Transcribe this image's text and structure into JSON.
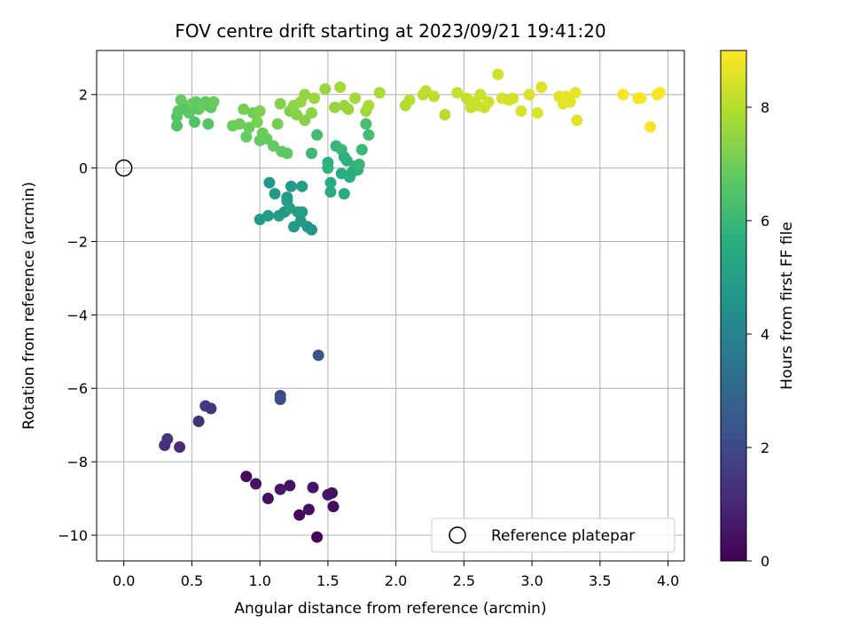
{
  "chart_data": {
    "type": "scatter",
    "title": "FOV centre drift starting at 2023/09/21 19:41:20",
    "xlabel": "Angular distance from reference (arcmin)",
    "ylabel": "Rotation from reference (arcmin)",
    "xlim": [
      -0.2,
      4.12
    ],
    "ylim": [
      -10.7,
      3.2
    ],
    "xticks": [
      0.0,
      0.5,
      1.0,
      1.5,
      2.0,
      2.5,
      3.0,
      3.5,
      4.0
    ],
    "xtick_labels": [
      "0.0",
      "0.5",
      "1.0",
      "1.5",
      "2.0",
      "2.5",
      "3.0",
      "3.5",
      "4.0"
    ],
    "yticks": [
      2,
      0,
      -2,
      -4,
      -6,
      -8,
      -10
    ],
    "ytick_labels": [
      "2",
      "0",
      "−2",
      "−4",
      "−6",
      "−8",
      "−10"
    ],
    "grid": true,
    "colormap": "viridis",
    "colorbar": {
      "label": "Hours from first FF file",
      "range": [
        0,
        9
      ],
      "ticks": [
        0,
        2,
        4,
        6,
        8
      ],
      "tick_labels": [
        "0",
        "2",
        "4",
        "6",
        "8"
      ]
    },
    "reference": {
      "name": "Reference platepar",
      "x": 0.0,
      "y": 0.0
    },
    "legend": {
      "placement": "lower-right",
      "entries": [
        "Reference platepar"
      ]
    },
    "points": [
      {
        "x": 0.9,
        "y": -8.4,
        "h": 0.3
      },
      {
        "x": 0.97,
        "y": -8.6,
        "h": 0.5
      },
      {
        "x": 1.06,
        "y": -9.0,
        "h": 0.35
      },
      {
        "x": 1.15,
        "y": -8.75,
        "h": 0.6
      },
      {
        "x": 1.22,
        "y": -8.65,
        "h": 0.45
      },
      {
        "x": 1.29,
        "y": -9.45,
        "h": 0.2
      },
      {
        "x": 1.36,
        "y": -9.3,
        "h": 0.4
      },
      {
        "x": 1.39,
        "y": -8.7,
        "h": 0.5
      },
      {
        "x": 1.42,
        "y": -10.05,
        "h": 0.1
      },
      {
        "x": 1.5,
        "y": -8.9,
        "h": 0.6
      },
      {
        "x": 1.53,
        "y": -8.85,
        "h": 0.4
      },
      {
        "x": 1.54,
        "y": -9.22,
        "h": 0.3
      },
      {
        "x": 0.3,
        "y": -7.55,
        "h": 1.2
      },
      {
        "x": 0.32,
        "y": -7.38,
        "h": 1.4
      },
      {
        "x": 0.41,
        "y": -7.6,
        "h": 1.1
      },
      {
        "x": 0.55,
        "y": -6.9,
        "h": 1.3
      },
      {
        "x": 0.6,
        "y": -6.48,
        "h": 1.5
      },
      {
        "x": 0.64,
        "y": -6.55,
        "h": 1.4
      },
      {
        "x": 1.15,
        "y": -6.2,
        "h": 1.9
      },
      {
        "x": 1.15,
        "y": -6.3,
        "h": 2.1
      },
      {
        "x": 1.43,
        "y": -5.1,
        "h": 2.3
      },
      {
        "x": 1.0,
        "y": -1.4,
        "h": 4.8
      },
      {
        "x": 1.06,
        "y": -1.3,
        "h": 4.9
      },
      {
        "x": 1.07,
        "y": -0.4,
        "h": 4.7
      },
      {
        "x": 1.11,
        "y": -0.7,
        "h": 4.9
      },
      {
        "x": 1.14,
        "y": -1.3,
        "h": 5.0
      },
      {
        "x": 1.18,
        "y": -1.2,
        "h": 4.8
      },
      {
        "x": 1.2,
        "y": -0.9,
        "h": 5.0
      },
      {
        "x": 1.2,
        "y": -0.8,
        "h": 4.9
      },
      {
        "x": 1.22,
        "y": -1.1,
        "h": 5.1
      },
      {
        "x": 1.23,
        "y": -0.5,
        "h": 4.8
      },
      {
        "x": 1.25,
        "y": -1.6,
        "h": 4.9
      },
      {
        "x": 1.28,
        "y": -1.2,
        "h": 5.0
      },
      {
        "x": 1.3,
        "y": -1.45,
        "h": 4.85
      },
      {
        "x": 1.31,
        "y": -0.5,
        "h": 4.95
      },
      {
        "x": 1.31,
        "y": -1.2,
        "h": 5.05
      },
      {
        "x": 1.35,
        "y": -1.6,
        "h": 4.75
      },
      {
        "x": 1.38,
        "y": -1.68,
        "h": 4.7
      },
      {
        "x": 1.38,
        "y": 0.4,
        "h": 6.1
      },
      {
        "x": 1.42,
        "y": 0.9,
        "h": 6.2
      },
      {
        "x": 1.5,
        "y": 0.15,
        "h": 5.7
      },
      {
        "x": 1.5,
        "y": 0.0,
        "h": 5.8
      },
      {
        "x": 1.52,
        "y": -0.4,
        "h": 5.6
      },
      {
        "x": 1.52,
        "y": -0.65,
        "h": 5.5
      },
      {
        "x": 1.56,
        "y": 0.6,
        "h": 5.9
      },
      {
        "x": 1.6,
        "y": 0.5,
        "h": 5.95
      },
      {
        "x": 1.6,
        "y": -0.15,
        "h": 5.6
      },
      {
        "x": 1.62,
        "y": -0.7,
        "h": 5.5
      },
      {
        "x": 1.62,
        "y": 0.3,
        "h": 5.8
      },
      {
        "x": 1.64,
        "y": 0.2,
        "h": 5.7
      },
      {
        "x": 1.66,
        "y": -0.25,
        "h": 5.7
      },
      {
        "x": 1.68,
        "y": -0.1,
        "h": 5.6
      },
      {
        "x": 1.7,
        "y": 0.05,
        "h": 5.8
      },
      {
        "x": 1.72,
        "y": -0.05,
        "h": 5.7
      },
      {
        "x": 1.75,
        "y": 0.5,
        "h": 6.0
      },
      {
        "x": 1.78,
        "y": 1.2,
        "h": 6.3
      },
      {
        "x": 1.8,
        "y": 0.9,
        "h": 6.2
      },
      {
        "x": 1.73,
        "y": 0.1,
        "h": 5.9
      },
      {
        "x": 0.39,
        "y": 1.15,
        "h": 6.5
      },
      {
        "x": 0.39,
        "y": 1.4,
        "h": 6.6
      },
      {
        "x": 0.4,
        "y": 1.55,
        "h": 6.7
      },
      {
        "x": 0.42,
        "y": 1.85,
        "h": 6.8
      },
      {
        "x": 0.45,
        "y": 1.6,
        "h": 6.6
      },
      {
        "x": 0.48,
        "y": 1.5,
        "h": 6.7
      },
      {
        "x": 0.5,
        "y": 1.75,
        "h": 6.9
      },
      {
        "x": 0.52,
        "y": 1.25,
        "h": 6.5
      },
      {
        "x": 0.53,
        "y": 1.8,
        "h": 6.8
      },
      {
        "x": 0.55,
        "y": 1.6,
        "h": 6.7
      },
      {
        "x": 0.58,
        "y": 1.7,
        "h": 6.9
      },
      {
        "x": 0.6,
        "y": 1.8,
        "h": 6.8
      },
      {
        "x": 0.62,
        "y": 1.2,
        "h": 6.6
      },
      {
        "x": 0.64,
        "y": 1.65,
        "h": 6.7
      },
      {
        "x": 0.66,
        "y": 1.8,
        "h": 6.9
      },
      {
        "x": 0.8,
        "y": 1.15,
        "h": 6.9
      },
      {
        "x": 0.85,
        "y": 1.2,
        "h": 7.0
      },
      {
        "x": 0.88,
        "y": 1.6,
        "h": 7.1
      },
      {
        "x": 0.9,
        "y": 0.85,
        "h": 6.8
      },
      {
        "x": 0.92,
        "y": 1.1,
        "h": 6.9
      },
      {
        "x": 0.95,
        "y": 1.5,
        "h": 7.0
      },
      {
        "x": 0.98,
        "y": 1.25,
        "h": 7.1
      },
      {
        "x": 1.0,
        "y": 1.55,
        "h": 7.2
      },
      {
        "x": 1.0,
        "y": 0.75,
        "h": 6.8
      },
      {
        "x": 1.02,
        "y": 0.95,
        "h": 6.9
      },
      {
        "x": 1.05,
        "y": 0.8,
        "h": 6.85
      },
      {
        "x": 1.1,
        "y": 0.6,
        "h": 6.8
      },
      {
        "x": 1.13,
        "y": 1.2,
        "h": 7.1
      },
      {
        "x": 1.15,
        "y": 1.75,
        "h": 7.3
      },
      {
        "x": 1.16,
        "y": 0.45,
        "h": 6.8
      },
      {
        "x": 1.2,
        "y": 0.4,
        "h": 6.7
      },
      {
        "x": 1.22,
        "y": 1.55,
        "h": 7.2
      },
      {
        "x": 1.25,
        "y": 1.7,
        "h": 7.4
      },
      {
        "x": 1.27,
        "y": 1.45,
        "h": 7.3
      },
      {
        "x": 1.3,
        "y": 1.8,
        "h": 7.5
      },
      {
        "x": 1.33,
        "y": 1.3,
        "h": 7.3
      },
      {
        "x": 1.33,
        "y": 2.0,
        "h": 7.5
      },
      {
        "x": 1.38,
        "y": 1.5,
        "h": 7.4
      },
      {
        "x": 1.4,
        "y": 1.9,
        "h": 7.6
      },
      {
        "x": 1.48,
        "y": 2.15,
        "h": 7.6
      },
      {
        "x": 1.55,
        "y": 1.65,
        "h": 7.5
      },
      {
        "x": 1.59,
        "y": 2.2,
        "h": 7.7
      },
      {
        "x": 1.62,
        "y": 1.7,
        "h": 7.6
      },
      {
        "x": 1.65,
        "y": 1.6,
        "h": 7.6
      },
      {
        "x": 1.7,
        "y": 1.9,
        "h": 7.7
      },
      {
        "x": 1.78,
        "y": 1.55,
        "h": 7.7
      },
      {
        "x": 1.8,
        "y": 1.7,
        "h": 7.8
      },
      {
        "x": 1.88,
        "y": 2.05,
        "h": 7.8
      },
      {
        "x": 2.07,
        "y": 1.7,
        "h": 7.9
      },
      {
        "x": 2.1,
        "y": 1.85,
        "h": 8.0
      },
      {
        "x": 2.2,
        "y": 2.0,
        "h": 8.0
      },
      {
        "x": 2.22,
        "y": 2.1,
        "h": 8.1
      },
      {
        "x": 2.28,
        "y": 1.95,
        "h": 8.1
      },
      {
        "x": 2.36,
        "y": 1.45,
        "h": 8.0
      },
      {
        "x": 2.45,
        "y": 2.05,
        "h": 8.2
      },
      {
        "x": 2.52,
        "y": 1.9,
        "h": 8.2
      },
      {
        "x": 2.55,
        "y": 1.65,
        "h": 8.2
      },
      {
        "x": 2.58,
        "y": 1.8,
        "h": 8.25
      },
      {
        "x": 2.6,
        "y": 1.7,
        "h": 8.3
      },
      {
        "x": 2.62,
        "y": 2.0,
        "h": 8.3
      },
      {
        "x": 2.65,
        "y": 1.65,
        "h": 8.3
      },
      {
        "x": 2.68,
        "y": 1.8,
        "h": 8.35
      },
      {
        "x": 2.75,
        "y": 2.55,
        "h": 8.4
      },
      {
        "x": 2.78,
        "y": 1.9,
        "h": 8.4
      },
      {
        "x": 2.83,
        "y": 1.85,
        "h": 8.45
      },
      {
        "x": 2.86,
        "y": 1.9,
        "h": 8.45
      },
      {
        "x": 2.92,
        "y": 1.55,
        "h": 8.5
      },
      {
        "x": 2.98,
        "y": 2.0,
        "h": 8.5
      },
      {
        "x": 3.04,
        "y": 1.5,
        "h": 8.5
      },
      {
        "x": 3.07,
        "y": 2.2,
        "h": 8.55
      },
      {
        "x": 3.2,
        "y": 1.95,
        "h": 8.6
      },
      {
        "x": 3.23,
        "y": 1.75,
        "h": 8.6
      },
      {
        "x": 3.25,
        "y": 1.95,
        "h": 8.65
      },
      {
        "x": 3.28,
        "y": 1.8,
        "h": 8.65
      },
      {
        "x": 3.32,
        "y": 2.05,
        "h": 8.7
      },
      {
        "x": 3.33,
        "y": 1.3,
        "h": 8.6
      },
      {
        "x": 3.67,
        "y": 2.0,
        "h": 8.85
      },
      {
        "x": 3.78,
        "y": 1.9,
        "h": 8.9
      },
      {
        "x": 3.8,
        "y": 1.9,
        "h": 8.9
      },
      {
        "x": 3.87,
        "y": 1.12,
        "h": 8.9
      },
      {
        "x": 3.92,
        "y": 2.0,
        "h": 8.95
      },
      {
        "x": 3.94,
        "y": 2.05,
        "h": 8.95
      }
    ]
  }
}
